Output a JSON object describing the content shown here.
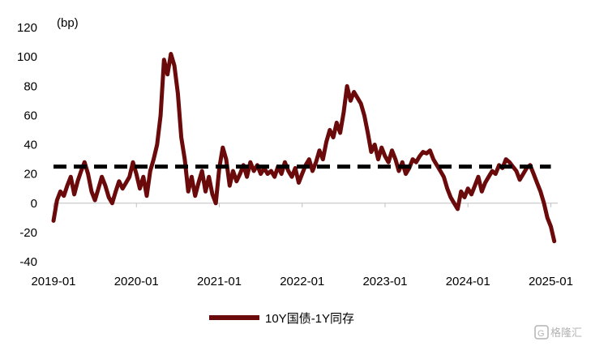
{
  "chart_data": {
    "type": "line",
    "unit_label": "(bp)",
    "xlabel": "",
    "ylabel": "",
    "ylim": [
      -40,
      120
    ],
    "y_ticks": [
      120,
      100,
      80,
      60,
      40,
      20,
      0,
      -20,
      -40
    ],
    "xlim": [
      "2019-01",
      "2025-02"
    ],
    "x_ticks": [
      "2019-01",
      "2020-01",
      "2021-01",
      "2022-01",
      "2023-01",
      "2024-01",
      "2025-01"
    ],
    "grid": false,
    "legend_position": "bottom",
    "series": [
      {
        "name": "10Y国债-1Y同存",
        "color": "#6b0a0a",
        "points": [
          [
            "2019-01",
            -12
          ],
          [
            "2019-01",
            2
          ],
          [
            "2019-02",
            8
          ],
          [
            "2019-02",
            5
          ],
          [
            "2019-03",
            12
          ],
          [
            "2019-03",
            18
          ],
          [
            "2019-04",
            6
          ],
          [
            "2019-04",
            15
          ],
          [
            "2019-05",
            22
          ],
          [
            "2019-05",
            28
          ],
          [
            "2019-06",
            20
          ],
          [
            "2019-06",
            8
          ],
          [
            "2019-07",
            2
          ],
          [
            "2019-07",
            10
          ],
          [
            "2019-08",
            18
          ],
          [
            "2019-08",
            12
          ],
          [
            "2019-09",
            4
          ],
          [
            "2019-09",
            0
          ],
          [
            "2019-10",
            8
          ],
          [
            "2019-10",
            15
          ],
          [
            "2019-11",
            10
          ],
          [
            "2019-11",
            14
          ],
          [
            "2019-12",
            18
          ],
          [
            "2019-12",
            28
          ],
          [
            "2020-01",
            20
          ],
          [
            "2020-01",
            10
          ],
          [
            "2020-02",
            18
          ],
          [
            "2020-02",
            5
          ],
          [
            "2020-03",
            22
          ],
          [
            "2020-03",
            30
          ],
          [
            "2020-04",
            40
          ],
          [
            "2020-04",
            60
          ],
          [
            "2020-05",
            98
          ],
          [
            "2020-05",
            88
          ],
          [
            "2020-06",
            102
          ],
          [
            "2020-06",
            94
          ],
          [
            "2020-07",
            75
          ],
          [
            "2020-07",
            45
          ],
          [
            "2020-08",
            30
          ],
          [
            "2020-08",
            8
          ],
          [
            "2020-09",
            18
          ],
          [
            "2020-09",
            5
          ],
          [
            "2020-10",
            14
          ],
          [
            "2020-10",
            22
          ],
          [
            "2020-11",
            8
          ],
          [
            "2020-11",
            18
          ],
          [
            "2020-12",
            6
          ],
          [
            "2020-12",
            0
          ],
          [
            "2021-01",
            24
          ],
          [
            "2021-01",
            38
          ],
          [
            "2021-02",
            30
          ],
          [
            "2021-02",
            12
          ],
          [
            "2021-03",
            22
          ],
          [
            "2021-03",
            15
          ],
          [
            "2021-04",
            20
          ],
          [
            "2021-04",
            26
          ],
          [
            "2021-05",
            18
          ],
          [
            "2021-05",
            28
          ],
          [
            "2021-06",
            22
          ],
          [
            "2021-06",
            26
          ],
          [
            "2021-07",
            20
          ],
          [
            "2021-07",
            24
          ],
          [
            "2021-08",
            20
          ],
          [
            "2021-08",
            22
          ],
          [
            "2021-09",
            18
          ],
          [
            "2021-09",
            25
          ],
          [
            "2021-10",
            20
          ],
          [
            "2021-10",
            28
          ],
          [
            "2021-11",
            22
          ],
          [
            "2021-11",
            18
          ],
          [
            "2021-12",
            24
          ],
          [
            "2021-12",
            14
          ],
          [
            "2022-01",
            20
          ],
          [
            "2022-01",
            26
          ],
          [
            "2022-02",
            30
          ],
          [
            "2022-02",
            22
          ],
          [
            "2022-03",
            28
          ],
          [
            "2022-03",
            36
          ],
          [
            "2022-04",
            30
          ],
          [
            "2022-04",
            42
          ],
          [
            "2022-05",
            50
          ],
          [
            "2022-05",
            45
          ],
          [
            "2022-06",
            55
          ],
          [
            "2022-06",
            48
          ],
          [
            "2022-07",
            62
          ],
          [
            "2022-07",
            80
          ],
          [
            "2022-08",
            70
          ],
          [
            "2022-08",
            76
          ],
          [
            "2022-09",
            72
          ],
          [
            "2022-09",
            68
          ],
          [
            "2022-10",
            60
          ],
          [
            "2022-10",
            48
          ],
          [
            "2022-11",
            35
          ],
          [
            "2022-11",
            40
          ],
          [
            "2022-12",
            30
          ],
          [
            "2022-12",
            38
          ],
          [
            "2023-01",
            32
          ],
          [
            "2023-01",
            28
          ],
          [
            "2023-02",
            36
          ],
          [
            "2023-02",
            30
          ],
          [
            "2023-03",
            22
          ],
          [
            "2023-03",
            28
          ],
          [
            "2023-04",
            20
          ],
          [
            "2023-04",
            24
          ],
          [
            "2023-05",
            30
          ],
          [
            "2023-05",
            28
          ],
          [
            "2023-06",
            32
          ],
          [
            "2023-06",
            35
          ],
          [
            "2023-07",
            34
          ],
          [
            "2023-07",
            36
          ],
          [
            "2023-08",
            30
          ],
          [
            "2023-08",
            26
          ],
          [
            "2023-09",
            22
          ],
          [
            "2023-09",
            18
          ],
          [
            "2023-10",
            10
          ],
          [
            "2023-10",
            4
          ],
          [
            "2023-11",
            0
          ],
          [
            "2023-11",
            -4
          ],
          [
            "2023-12",
            8
          ],
          [
            "2023-12",
            4
          ],
          [
            "2024-01",
            10
          ],
          [
            "2024-01",
            6
          ],
          [
            "2024-02",
            12
          ],
          [
            "2024-02",
            18
          ],
          [
            "2024-03",
            8
          ],
          [
            "2024-03",
            14
          ],
          [
            "2024-04",
            18
          ],
          [
            "2024-04",
            22
          ],
          [
            "2024-05",
            20
          ],
          [
            "2024-05",
            26
          ],
          [
            "2024-06",
            24
          ],
          [
            "2024-06",
            30
          ],
          [
            "2024-07",
            28
          ],
          [
            "2024-07",
            25
          ],
          [
            "2024-08",
            22
          ],
          [
            "2024-08",
            16
          ],
          [
            "2024-09",
            20
          ],
          [
            "2024-09",
            24
          ],
          [
            "2024-10",
            26
          ],
          [
            "2024-10",
            20
          ],
          [
            "2024-11",
            14
          ],
          [
            "2024-11",
            8
          ],
          [
            "2024-12",
            0
          ],
          [
            "2024-12",
            -10
          ],
          [
            "2025-01",
            -16
          ],
          [
            "2025-01",
            -26
          ]
        ]
      },
      {
        "name": "",
        "style": "dashed",
        "color": "#000000",
        "points": [
          [
            "2019-01",
            25
          ],
          [
            "2025-01",
            25
          ]
        ]
      }
    ]
  },
  "watermark": {
    "text": "格隆汇",
    "icon": "glh-logo-icon"
  }
}
